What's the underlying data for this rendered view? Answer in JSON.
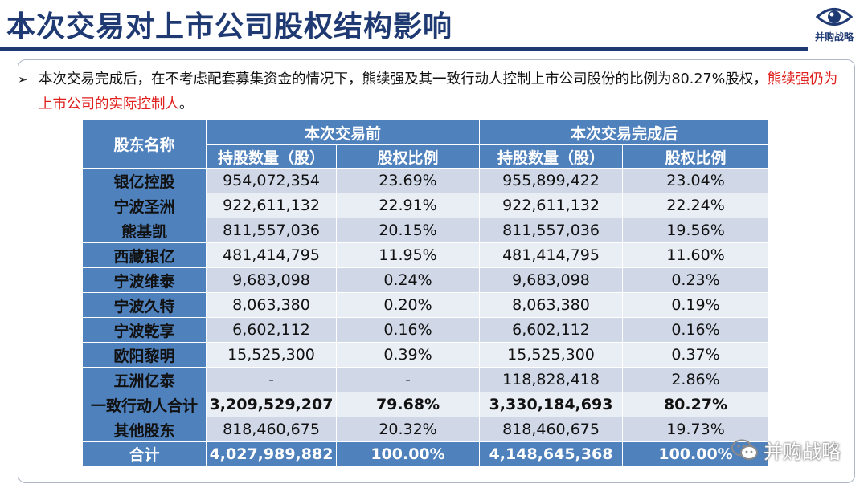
{
  "title": "本次交易对上市公司股权结构影响",
  "logo": {
    "icon": "eye-icon",
    "text": "并购战略",
    "color": "#1f3a73"
  },
  "bullet": {
    "text": "本次交易完成后，在不考虑配套募集资金的情况下，熊续强及其一致行动人控制上市公司股份的比例为80.27%股权，",
    "highlight": "熊续强仍为上市公司的实际控制人",
    "end": "。"
  },
  "table": {
    "col_shareholder": "股东名称",
    "group_before": "本次交易前",
    "group_after": "本次交易完成后",
    "col_shares": "持股数量（股）",
    "col_ratio": "股权比例",
    "rows": [
      {
        "name": "银亿控股",
        "before_shares": "954,072,354",
        "before_ratio": "23.69%",
        "after_shares": "955,899,422",
        "after_ratio": "23.04%"
      },
      {
        "name": "宁波圣洲",
        "before_shares": "922,611,132",
        "before_ratio": "22.91%",
        "after_shares": "922,611,132",
        "after_ratio": "22.24%"
      },
      {
        "name": "熊基凯",
        "before_shares": "811,557,036",
        "before_ratio": "20.15%",
        "after_shares": "811,557,036",
        "after_ratio": "19.56%"
      },
      {
        "name": "西藏银亿",
        "before_shares": "481,414,795",
        "before_ratio": "11.95%",
        "after_shares": "481,414,795",
        "after_ratio": "11.60%"
      },
      {
        "name": "宁波维泰",
        "before_shares": "9,683,098",
        "before_ratio": "0.24%",
        "after_shares": "9,683,098",
        "after_ratio": "0.23%"
      },
      {
        "name": "宁波久特",
        "before_shares": "8,063,380",
        "before_ratio": "0.20%",
        "after_shares": "8,063,380",
        "after_ratio": "0.19%"
      },
      {
        "name": "宁波乾享",
        "before_shares": "6,602,112",
        "before_ratio": "0.16%",
        "after_shares": "6,602,112",
        "after_ratio": "0.16%"
      },
      {
        "name": "欧阳黎明",
        "before_shares": "15,525,300",
        "before_ratio": "0.39%",
        "after_shares": "15,525,300",
        "after_ratio": "0.37%"
      },
      {
        "name": "五洲亿泰",
        "before_shares": "-",
        "before_ratio": "-",
        "after_shares": "118,828,418",
        "after_ratio": "2.86%"
      },
      {
        "name": "一致行动人合计",
        "before_shares": "3,209,529,207",
        "before_ratio": "79.68%",
        "after_shares": "3,330,184,693",
        "after_ratio": "80.27%"
      },
      {
        "name": "其他股东",
        "before_shares": "818,460,675",
        "before_ratio": "20.32%",
        "after_shares": "818,460,675",
        "after_ratio": "19.73%"
      }
    ],
    "total": {
      "name": "合计",
      "before_shares": "4,027,989,882",
      "before_ratio": "100.00%",
      "after_shares": "4,148,645,368",
      "after_ratio": "100.00%"
    }
  },
  "watermark": {
    "icon": "wechat-icon",
    "text": "并购战略"
  },
  "colors": {
    "header_blue": "#4f81bd",
    "row_dark": "#d0d8e8",
    "row_light": "#e9edf4",
    "title_navy": "#1f3a73",
    "highlight_red": "#e0201e"
  }
}
